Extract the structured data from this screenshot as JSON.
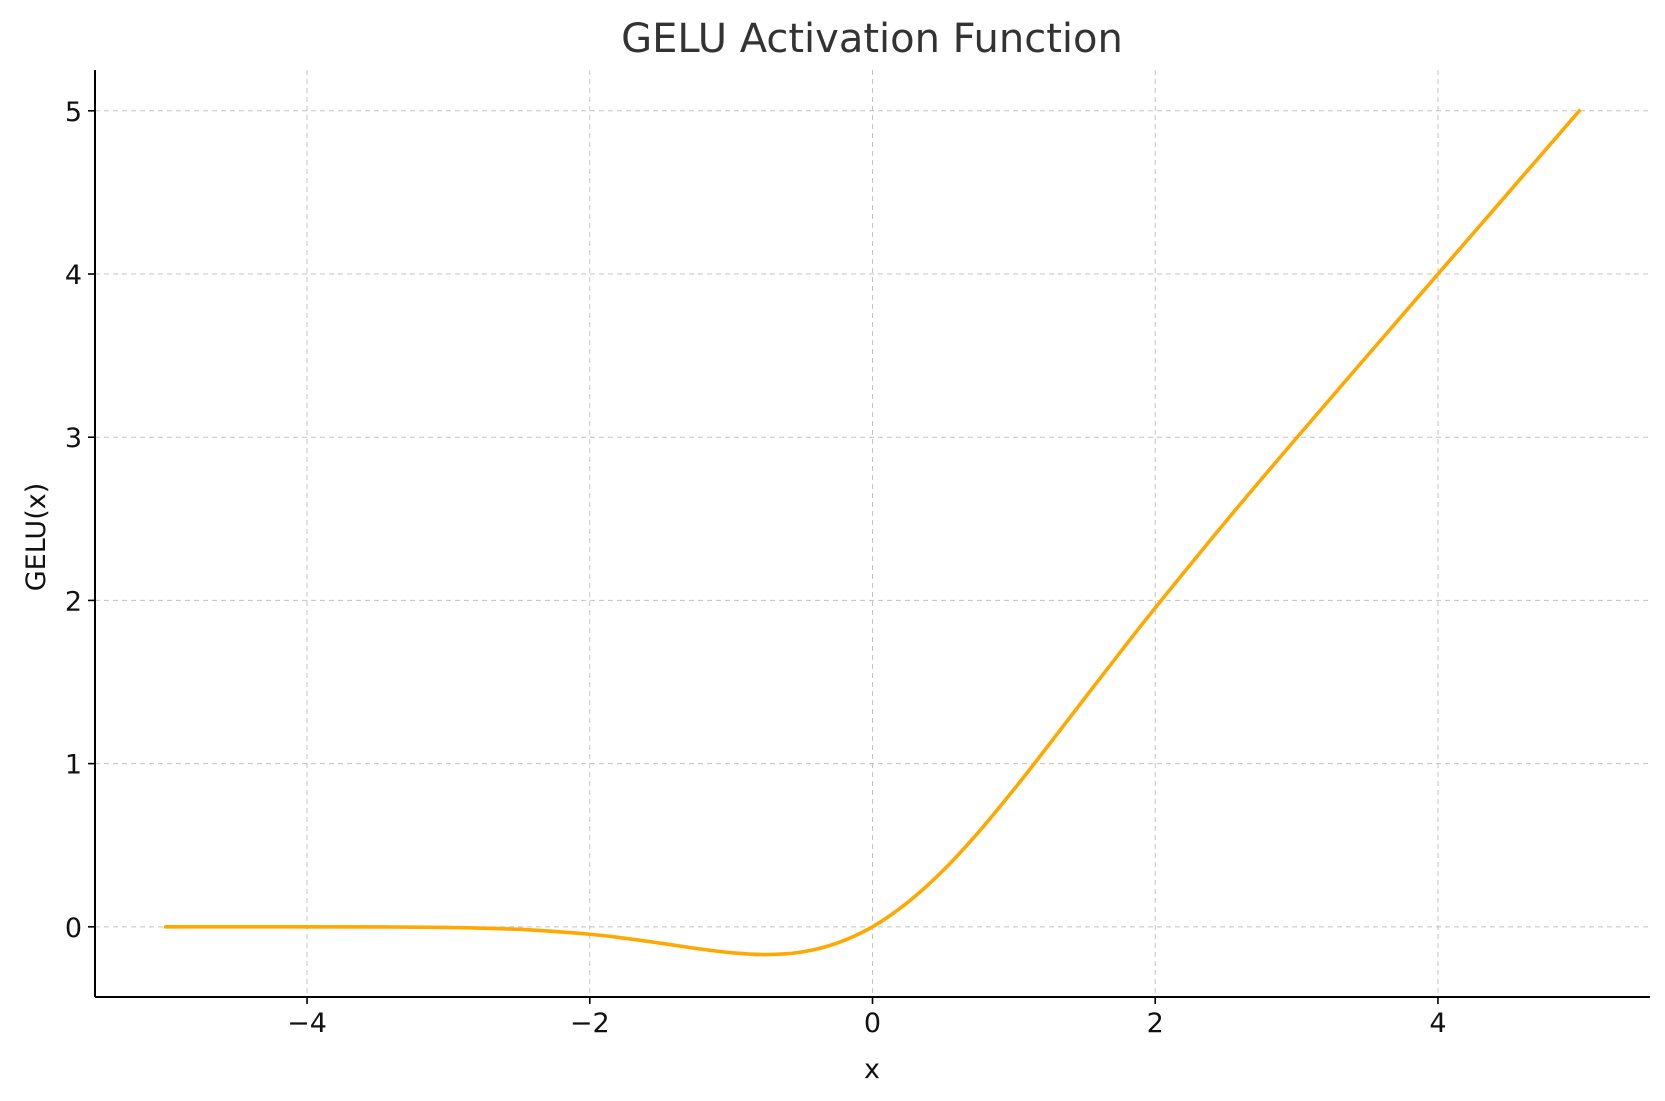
{
  "chart_data": {
    "type": "line",
    "title": "GELU Activation Function",
    "xlabel": "x",
    "ylabel": "GELU(x)",
    "xlim": [
      -5.5,
      5.5
    ],
    "ylim": [
      -0.43,
      5.25
    ],
    "xticks": [
      -4,
      -2,
      0,
      2,
      4
    ],
    "xtick_labels": [
      "−4",
      "−2",
      "0",
      "2",
      "4"
    ],
    "yticks": [
      0,
      1,
      2,
      3,
      4,
      5
    ],
    "ytick_labels": [
      "0",
      "1",
      "2",
      "3",
      "4",
      "5"
    ],
    "grid": true,
    "series": [
      {
        "color": "#FFA800",
        "x": [
          -5,
          -4.5,
          -4,
          -3.5,
          -3,
          -2.5,
          -2,
          -1.75,
          -1.5,
          -1.25,
          -1,
          -0.75,
          -0.5,
          -0.25,
          0,
          0.25,
          0.5,
          0.75,
          1,
          1.25,
          1.5,
          1.75,
          2,
          2.5,
          3,
          3.5,
          4,
          4.5,
          5
        ],
        "y": [
          0,
          0,
          -0.0001,
          -0.0008,
          -0.004,
          -0.0155,
          -0.0455,
          -0.0702,
          -0.1002,
          -0.1321,
          -0.1587,
          -0.17,
          -0.1543,
          -0.0995,
          0,
          0.1505,
          0.3457,
          0.58,
          0.8413,
          1.1179,
          1.3998,
          1.6798,
          1.9545,
          2.4845,
          2.996,
          3.4992,
          3.9999,
          4.5,
          5
        ]
      }
    ]
  }
}
